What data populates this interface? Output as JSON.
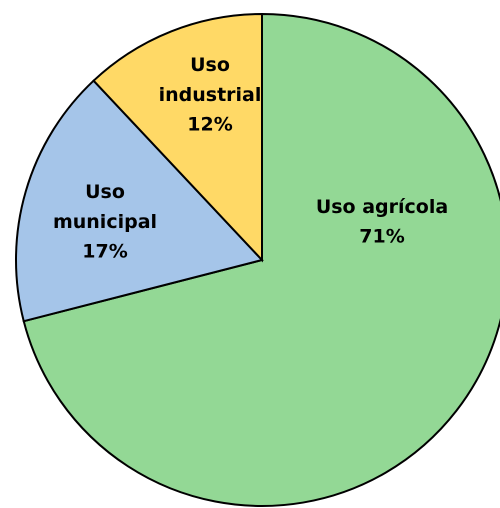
{
  "chart_data": {
    "type": "pie",
    "categories": [
      "Uso agrícola",
      "Uso municipal",
      "Uso industrial"
    ],
    "values": [
      71,
      17,
      12
    ],
    "value_labels": [
      "71%",
      "17%",
      "12%"
    ],
    "colors": [
      "#93d895",
      "#a5c5e9",
      "#ffd966"
    ]
  }
}
